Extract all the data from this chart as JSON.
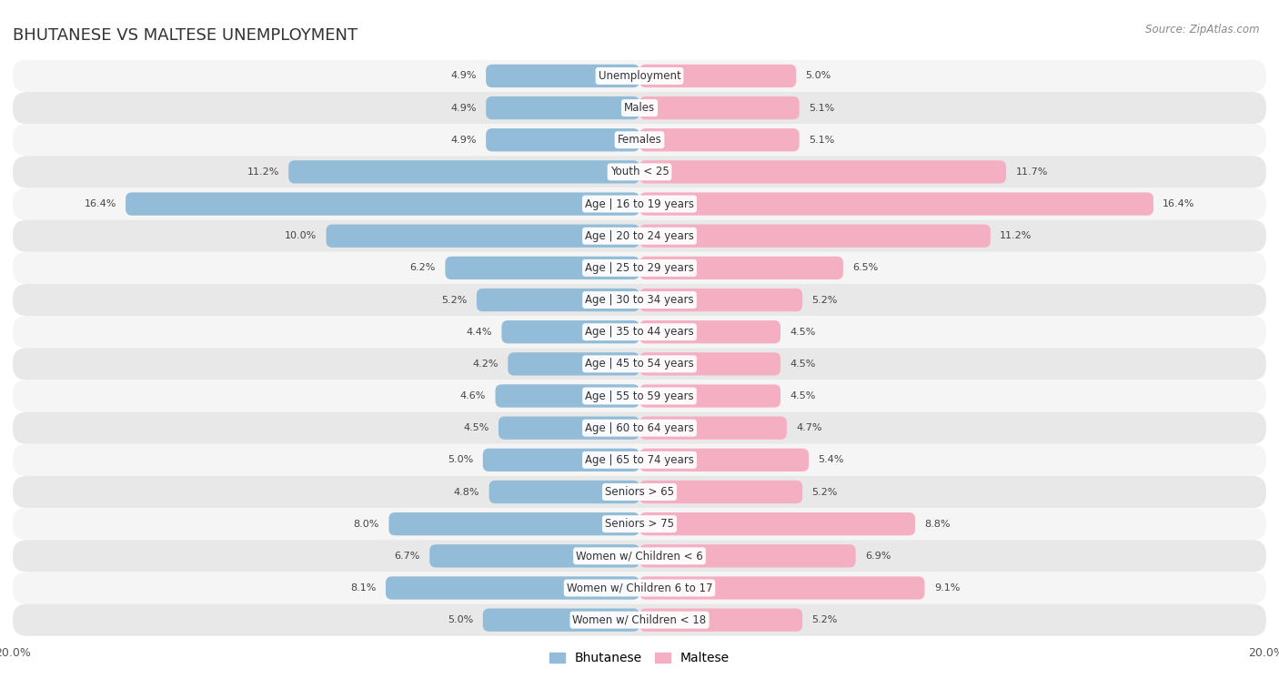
{
  "title": "BHUTANESE VS MALTESE UNEMPLOYMENT",
  "source": "Source: ZipAtlas.com",
  "categories": [
    "Unemployment",
    "Males",
    "Females",
    "Youth < 25",
    "Age | 16 to 19 years",
    "Age | 20 to 24 years",
    "Age | 25 to 29 years",
    "Age | 30 to 34 years",
    "Age | 35 to 44 years",
    "Age | 45 to 54 years",
    "Age | 55 to 59 years",
    "Age | 60 to 64 years",
    "Age | 65 to 74 years",
    "Seniors > 65",
    "Seniors > 75",
    "Women w/ Children < 6",
    "Women w/ Children 6 to 17",
    "Women w/ Children < 18"
  ],
  "bhutanese": [
    4.9,
    4.9,
    4.9,
    11.2,
    16.4,
    10.0,
    6.2,
    5.2,
    4.4,
    4.2,
    4.6,
    4.5,
    5.0,
    4.8,
    8.0,
    6.7,
    8.1,
    5.0
  ],
  "maltese": [
    5.0,
    5.1,
    5.1,
    11.7,
    16.4,
    11.2,
    6.5,
    5.2,
    4.5,
    4.5,
    4.5,
    4.7,
    5.4,
    5.2,
    8.8,
    6.9,
    9.1,
    5.2
  ],
  "bhutanese_color": "#92bcd8",
  "maltese_color": "#f5afc3",
  "row_bg_colors": [
    "#f5f5f5",
    "#e8e8e8"
  ],
  "xlim": 20.0,
  "bar_height": 0.72,
  "title_fontsize": 13,
  "label_fontsize": 8.5,
  "value_fontsize": 8.0,
  "legend_fontsize": 10,
  "source_fontsize": 8.5
}
